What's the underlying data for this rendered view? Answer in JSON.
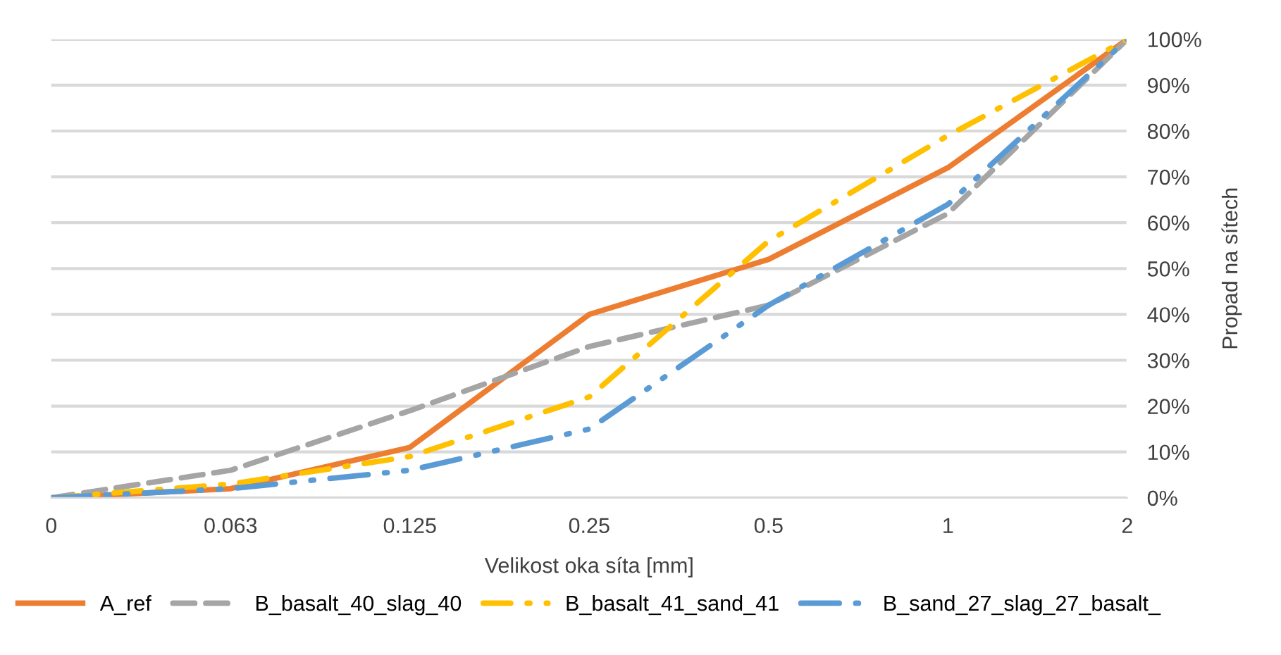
{
  "chart_data": {
    "type": "line",
    "xlabel": "Velikost oka síta [mm]",
    "ylabel": "Propad na sítech",
    "categories": [
      "0",
      "0.063",
      "0.125",
      "0.25",
      "0.5",
      "1",
      "2"
    ],
    "series": [
      {
        "name": "A_ref",
        "color": "#ed7d31",
        "line_style": "solid",
        "values": [
          0,
          2,
          11,
          40,
          52,
          72,
          100
        ]
      },
      {
        "name": "B_basalt_40_slag_40",
        "color": "#a5a5a5",
        "line_style": "dashed",
        "values": [
          0,
          6,
          19,
          33,
          42,
          62,
          100
        ]
      },
      {
        "name": "B_basalt_41_sand_41",
        "color": "#ffc000",
        "line_style": "dashdot",
        "values": [
          0,
          3,
          9,
          22,
          56,
          79,
          100
        ]
      },
      {
        "name": "B_sand_27_slag_27_basalt_",
        "color": "#5b9bd5",
        "line_style": "dashdotdot",
        "values": [
          0,
          2,
          6,
          15,
          42,
          64,
          100
        ]
      }
    ],
    "ylim": [
      0,
      100
    ],
    "yticks": [
      {
        "value": 0,
        "label": "0%"
      },
      {
        "value": 10,
        "label": "10%"
      },
      {
        "value": 20,
        "label": "20%"
      },
      {
        "value": 30,
        "label": "30%"
      },
      {
        "value": 40,
        "label": "40%"
      },
      {
        "value": 50,
        "label": "50%"
      },
      {
        "value": 60,
        "label": "60%"
      },
      {
        "value": 70,
        "label": "70%"
      },
      {
        "value": 80,
        "label": "80%"
      },
      {
        "value": 90,
        "label": "90%"
      },
      {
        "value": 100,
        "label": "100%"
      }
    ],
    "grid": "y",
    "legend": "bottom",
    "marker": "none"
  }
}
